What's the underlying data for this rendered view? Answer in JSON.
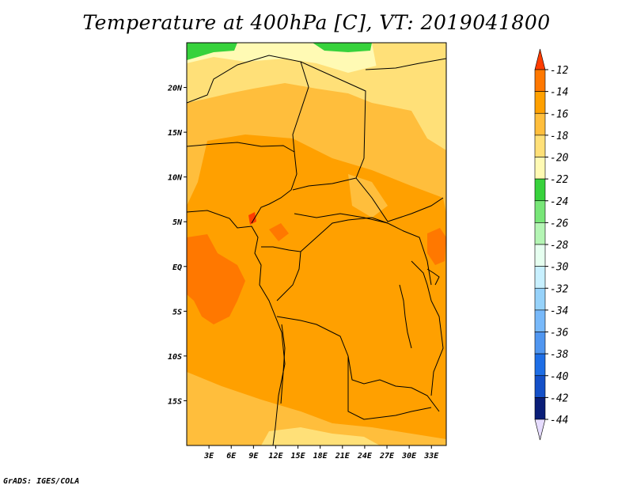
{
  "title": "Temperature at 400hPa [C], VT: 2019041800",
  "credit": "GrADS: IGES/COLA",
  "map": {
    "lon_range": [
      0,
      35
    ],
    "lat_range": [
      -20,
      25
    ],
    "lat_ticks": [
      {
        "value": 20,
        "label": "20N"
      },
      {
        "value": 15,
        "label": "15N"
      },
      {
        "value": 10,
        "label": "10N"
      },
      {
        "value": 5,
        "label": "5N"
      },
      {
        "value": 0,
        "label": "EQ"
      },
      {
        "value": -5,
        "label": "5S"
      },
      {
        "value": -10,
        "label": "10S"
      },
      {
        "value": -15,
        "label": "15S"
      }
    ],
    "lon_ticks": [
      {
        "value": 3,
        "label": "3E"
      },
      {
        "value": 6,
        "label": "6E"
      },
      {
        "value": 9,
        "label": "9E"
      },
      {
        "value": 12,
        "label": "12E"
      },
      {
        "value": 15,
        "label": "15E"
      },
      {
        "value": 18,
        "label": "18E"
      },
      {
        "value": 21,
        "label": "21E"
      },
      {
        "value": 24,
        "label": "24E"
      },
      {
        "value": 27,
        "label": "27E"
      },
      {
        "value": 30,
        "label": "30E"
      },
      {
        "value": 33,
        "label": "33E"
      }
    ]
  },
  "legend": {
    "levels": [
      "-12",
      "-14",
      "-16",
      "-18",
      "-20",
      "-22",
      "-24",
      "-26",
      "-28",
      "-30",
      "-32",
      "-34",
      "-36",
      "-38",
      "-40",
      "-42",
      "-44"
    ],
    "colors": [
      "#ff3c00",
      "#ff7800",
      "#ffa000",
      "#ffbe3c",
      "#ffe078",
      "#fffab4",
      "#37d23c",
      "#78e678",
      "#b4f5b4",
      "#e6fff0",
      "#c8f0ff",
      "#96d2fa",
      "#78b9fa",
      "#5096f0",
      "#1e6ee6",
      "#1450c8",
      "#0a1e78",
      "#e6dcff"
    ]
  },
  "regions": [
    {
      "name": "warm-patch-west",
      "color": "#ff7800"
    },
    {
      "name": "cool-band-north",
      "color": "#ffe078"
    },
    {
      "name": "cold-patch-north",
      "color": "#37d23c"
    }
  ]
}
